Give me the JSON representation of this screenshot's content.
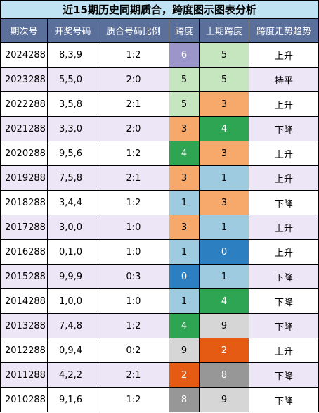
{
  "title": "近15期历史同期质合，跨度图示图表分析",
  "colors": {
    "title_bg": "#bfe3f2",
    "header_bg": "#5b6f9b",
    "row_white": "#ffffff",
    "row_lavender": "#ede6f6",
    "span_purple": "#9b96c9",
    "span_lightgreen": "#c6e6bf",
    "span_orange": "#f6a96b",
    "span_darkgreen": "#2ea553",
    "span_lightblue": "#9fcbe1",
    "span_blue": "#2c7fc0",
    "span_gray": "#d6d6d6",
    "span_darkorange": "#e55b14",
    "span_darkgray": "#979797"
  },
  "headers": [
    "期次号",
    "开奖号码",
    "质合号码比例",
    "跨度",
    "上期跨度",
    "跨度走势趋势"
  ],
  "rows": [
    {
      "period": "2024288",
      "numbers": "8,3,9",
      "ratio": "1:2",
      "span": "6",
      "span_color": "#9b96c9",
      "span_text": "#ffffff",
      "prev_span": "5",
      "prev_color": "#c6e6bf",
      "prev_text": "#000000",
      "trend": "上升",
      "row_bg": "#ffffff"
    },
    {
      "period": "2023288",
      "numbers": "5,5,0",
      "ratio": "2:0",
      "span": "5",
      "span_color": "#c6e6bf",
      "span_text": "#000000",
      "prev_span": "5",
      "prev_color": "#c6e6bf",
      "prev_text": "#000000",
      "trend": "持平",
      "row_bg": "#ede6f6"
    },
    {
      "period": "2022288",
      "numbers": "3,5,8",
      "ratio": "2:1",
      "span": "5",
      "span_color": "#c6e6bf",
      "span_text": "#000000",
      "prev_span": "3",
      "prev_color": "#f6a96b",
      "prev_text": "#000000",
      "trend": "上升",
      "row_bg": "#ffffff"
    },
    {
      "period": "2021288",
      "numbers": "3,3,0",
      "ratio": "2:0",
      "span": "3",
      "span_color": "#f6a96b",
      "span_text": "#000000",
      "prev_span": "4",
      "prev_color": "#2ea553",
      "prev_text": "#ffffff",
      "trend": "下降",
      "row_bg": "#ede6f6"
    },
    {
      "period": "2020288",
      "numbers": "9,5,6",
      "ratio": "1:2",
      "span": "4",
      "span_color": "#2ea553",
      "span_text": "#ffffff",
      "prev_span": "3",
      "prev_color": "#f6a96b",
      "prev_text": "#000000",
      "trend": "上升",
      "row_bg": "#ffffff"
    },
    {
      "period": "2019288",
      "numbers": "7,5,8",
      "ratio": "2:1",
      "span": "3",
      "span_color": "#f6a96b",
      "span_text": "#000000",
      "prev_span": "1",
      "prev_color": "#9fcbe1",
      "prev_text": "#000000",
      "trend": "上升",
      "row_bg": "#ede6f6"
    },
    {
      "period": "2018288",
      "numbers": "3,4,4",
      "ratio": "1:2",
      "span": "1",
      "span_color": "#9fcbe1",
      "span_text": "#000000",
      "prev_span": "3",
      "prev_color": "#f6a96b",
      "prev_text": "#000000",
      "trend": "下降",
      "row_bg": "#ffffff"
    },
    {
      "period": "2017288",
      "numbers": "3,0,0",
      "ratio": "1:0",
      "span": "3",
      "span_color": "#f6a96b",
      "span_text": "#000000",
      "prev_span": "1",
      "prev_color": "#9fcbe1",
      "prev_text": "#000000",
      "trend": "上升",
      "row_bg": "#ede6f6"
    },
    {
      "period": "2016288",
      "numbers": "0,1,0",
      "ratio": "1:0",
      "span": "1",
      "span_color": "#9fcbe1",
      "span_text": "#000000",
      "prev_span": "0",
      "prev_color": "#2c7fc0",
      "prev_text": "#ffffff",
      "trend": "上升",
      "row_bg": "#ffffff"
    },
    {
      "period": "2015288",
      "numbers": "9,9,9",
      "ratio": "0:3",
      "span": "0",
      "span_color": "#2c7fc0",
      "span_text": "#ffffff",
      "prev_span": "1",
      "prev_color": "#9fcbe1",
      "prev_text": "#000000",
      "trend": "下降",
      "row_bg": "#ede6f6"
    },
    {
      "period": "2014288",
      "numbers": "1,0,0",
      "ratio": "1:0",
      "span": "1",
      "span_color": "#9fcbe1",
      "span_text": "#000000",
      "prev_span": "4",
      "prev_color": "#2ea553",
      "prev_text": "#ffffff",
      "trend": "下降",
      "row_bg": "#ffffff"
    },
    {
      "period": "2013288",
      "numbers": "7,4,8",
      "ratio": "1:2",
      "span": "4",
      "span_color": "#2ea553",
      "span_text": "#ffffff",
      "prev_span": "9",
      "prev_color": "#d6d6d6",
      "prev_text": "#000000",
      "trend": "下降",
      "row_bg": "#ede6f6"
    },
    {
      "period": "2012288",
      "numbers": "0,9,4",
      "ratio": "0:2",
      "span": "9",
      "span_color": "#d6d6d6",
      "span_text": "#000000",
      "prev_span": "2",
      "prev_color": "#e55b14",
      "prev_text": "#ffffff",
      "trend": "上升",
      "row_bg": "#ffffff"
    },
    {
      "period": "2011288",
      "numbers": "4,2,2",
      "ratio": "2:1",
      "span": "2",
      "span_color": "#e55b14",
      "span_text": "#ffffff",
      "prev_span": "8",
      "prev_color": "#979797",
      "prev_text": "#ffffff",
      "trend": "下降",
      "row_bg": "#ede6f6"
    },
    {
      "period": "2010288",
      "numbers": "9,1,6",
      "ratio": "1:2",
      "span": "8",
      "span_color": "#979797",
      "span_text": "#ffffff",
      "prev_span": "9",
      "prev_color": "#d6d6d6",
      "prev_text": "#000000",
      "trend": "下降",
      "row_bg": "#ffffff"
    }
  ]
}
